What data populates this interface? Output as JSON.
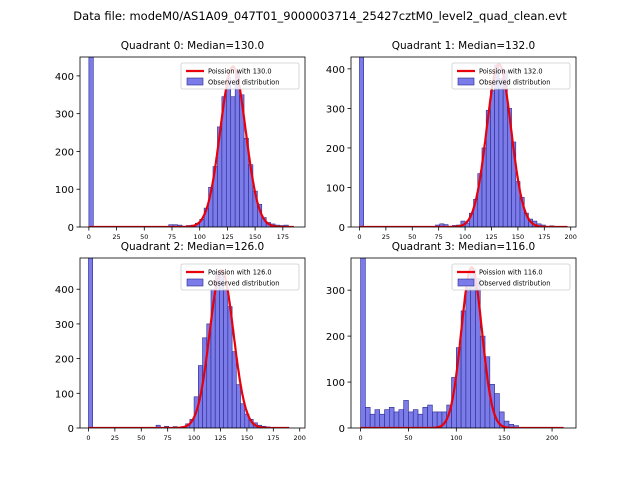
{
  "figure_title": "Data file: modeM0/AS1A09_047T01_9000003714_25427cztM0_level2_quad_clean.evt",
  "chart_data": [
    {
      "type": "bar",
      "title": "Quadrant 0: Median=130.0",
      "xlabel": "",
      "ylabel": "",
      "xlim": [
        -8,
        195
      ],
      "ylim": [
        0,
        450
      ],
      "xticks": [
        0,
        25,
        50,
        75,
        100,
        125,
        150,
        175
      ],
      "yticks": [
        0,
        100,
        200,
        300,
        400
      ],
      "bin_width": 4,
      "bins": [
        {
          "x": 0,
          "count": 450
        },
        {
          "x": 72,
          "count": 6
        },
        {
          "x": 76,
          "count": 6
        },
        {
          "x": 80,
          "count": 5
        },
        {
          "x": 88,
          "count": 4
        },
        {
          "x": 92,
          "count": 5
        },
        {
          "x": 96,
          "count": 10
        },
        {
          "x": 100,
          "count": 20
        },
        {
          "x": 104,
          "count": 50
        },
        {
          "x": 108,
          "count": 105
        },
        {
          "x": 112,
          "count": 160
        },
        {
          "x": 116,
          "count": 265
        },
        {
          "x": 120,
          "count": 345
        },
        {
          "x": 124,
          "count": 395
        },
        {
          "x": 128,
          "count": 345
        },
        {
          "x": 132,
          "count": 410
        },
        {
          "x": 136,
          "count": 350
        },
        {
          "x": 140,
          "count": 235
        },
        {
          "x": 144,
          "count": 165
        },
        {
          "x": 148,
          "count": 95
        },
        {
          "x": 152,
          "count": 60
        },
        {
          "x": 156,
          "count": 25
        },
        {
          "x": 160,
          "count": 12
        },
        {
          "x": 164,
          "count": 8
        },
        {
          "x": 168,
          "count": 5
        },
        {
          "x": 172,
          "count": 4
        },
        {
          "x": 176,
          "count": 5
        }
      ],
      "poisson": {
        "label": "Poission with 130.0",
        "mean": 130.0,
        "peak": 425,
        "x_range": [
          0,
          185
        ]
      },
      "legend": {
        "line_label": "Poission with 130.0",
        "bar_label": "Observed distribution",
        "position": "top-right"
      }
    },
    {
      "type": "bar",
      "title": "Quadrant 1: Median=132.0",
      "xlabel": "",
      "ylabel": "",
      "xlim": [
        -8,
        205
      ],
      "ylim": [
        0,
        430
      ],
      "xticks": [
        0,
        25,
        50,
        75,
        100,
        125,
        150,
        175,
        200
      ],
      "yticks": [
        0,
        100,
        200,
        300,
        400
      ],
      "bin_width": 4,
      "bins": [
        {
          "x": 0,
          "count": 430
        },
        {
          "x": 72,
          "count": 5
        },
        {
          "x": 76,
          "count": 8
        },
        {
          "x": 80,
          "count": 6
        },
        {
          "x": 88,
          "count": 4
        },
        {
          "x": 92,
          "count": 5
        },
        {
          "x": 96,
          "count": 15
        },
        {
          "x": 100,
          "count": 10
        },
        {
          "x": 104,
          "count": 35
        },
        {
          "x": 108,
          "count": 70
        },
        {
          "x": 112,
          "count": 135
        },
        {
          "x": 116,
          "count": 200
        },
        {
          "x": 120,
          "count": 295
        },
        {
          "x": 124,
          "count": 345
        },
        {
          "x": 128,
          "count": 410
        },
        {
          "x": 132,
          "count": 375
        },
        {
          "x": 136,
          "count": 395
        },
        {
          "x": 140,
          "count": 300
        },
        {
          "x": 144,
          "count": 215
        },
        {
          "x": 148,
          "count": 115
        },
        {
          "x": 152,
          "count": 75
        },
        {
          "x": 156,
          "count": 35
        },
        {
          "x": 160,
          "count": 20
        },
        {
          "x": 164,
          "count": 15
        },
        {
          "x": 168,
          "count": 8
        },
        {
          "x": 172,
          "count": 5
        },
        {
          "x": 180,
          "count": 3
        }
      ],
      "poisson": {
        "label": "Poission with 132.0",
        "mean": 132.0,
        "peak": 412,
        "x_range": [
          0,
          197
        ]
      },
      "legend": {
        "line_label": "Poission with 132.0",
        "bar_label": "Observed distribution",
        "position": "top-right"
      }
    },
    {
      "type": "bar",
      "title": "Quadrant 2: Median=126.0",
      "xlabel": "",
      "ylabel": "",
      "xlim": [
        -8,
        205
      ],
      "ylim": [
        0,
        490
      ],
      "xticks": [
        0,
        25,
        50,
        75,
        100,
        125,
        150,
        175,
        200
      ],
      "yticks": [
        0,
        100,
        200,
        300,
        400
      ],
      "bin_width": 4,
      "bins": [
        {
          "x": 0,
          "count": 490
        },
        {
          "x": 64,
          "count": 8
        },
        {
          "x": 72,
          "count": 5
        },
        {
          "x": 80,
          "count": 4
        },
        {
          "x": 88,
          "count": 4
        },
        {
          "x": 92,
          "count": 12
        },
        {
          "x": 96,
          "count": 25
        },
        {
          "x": 100,
          "count": 90
        },
        {
          "x": 104,
          "count": 180
        },
        {
          "x": 108,
          "count": 260
        },
        {
          "x": 112,
          "count": 300
        },
        {
          "x": 116,
          "count": 400
        },
        {
          "x": 120,
          "count": 450
        },
        {
          "x": 124,
          "count": 455
        },
        {
          "x": 128,
          "count": 400
        },
        {
          "x": 132,
          "count": 350
        },
        {
          "x": 136,
          "count": 220
        },
        {
          "x": 140,
          "count": 125
        },
        {
          "x": 144,
          "count": 70
        },
        {
          "x": 148,
          "count": 40
        },
        {
          "x": 152,
          "count": 25
        },
        {
          "x": 156,
          "count": 15
        },
        {
          "x": 160,
          "count": 8
        },
        {
          "x": 164,
          "count": 5
        },
        {
          "x": 168,
          "count": 3
        }
      ],
      "poisson": {
        "label": "Poission with 126.0",
        "mean": 126.0,
        "peak": 455,
        "x_range": [
          0,
          190
        ]
      },
      "legend": {
        "line_label": "Poission with 126.0",
        "bar_label": "Observed distribution",
        "position": "top-right"
      }
    },
    {
      "type": "bar",
      "title": "Quadrant 3: Median=116.0",
      "xlabel": "",
      "ylabel": "",
      "xlim": [
        -10,
        225
      ],
      "ylim": [
        0,
        370
      ],
      "xticks": [
        0,
        50,
        100,
        150,
        200
      ],
      "yticks": [
        0,
        100,
        200,
        300
      ],
      "bin_width": 5,
      "bins": [
        {
          "x": 0,
          "count": 370
        },
        {
          "x": 5,
          "count": 45
        },
        {
          "x": 10,
          "count": 30
        },
        {
          "x": 15,
          "count": 40
        },
        {
          "x": 20,
          "count": 30
        },
        {
          "x": 25,
          "count": 40
        },
        {
          "x": 30,
          "count": 45
        },
        {
          "x": 35,
          "count": 35
        },
        {
          "x": 40,
          "count": 40
        },
        {
          "x": 45,
          "count": 60
        },
        {
          "x": 50,
          "count": 35
        },
        {
          "x": 55,
          "count": 40
        },
        {
          "x": 60,
          "count": 30
        },
        {
          "x": 65,
          "count": 45
        },
        {
          "x": 70,
          "count": 50
        },
        {
          "x": 75,
          "count": 35
        },
        {
          "x": 80,
          "count": 35
        },
        {
          "x": 85,
          "count": 35
        },
        {
          "x": 90,
          "count": 50
        },
        {
          "x": 95,
          "count": 110
        },
        {
          "x": 100,
          "count": 175
        },
        {
          "x": 105,
          "count": 255
        },
        {
          "x": 110,
          "count": 305
        },
        {
          "x": 115,
          "count": 345
        },
        {
          "x": 120,
          "count": 325
        },
        {
          "x": 125,
          "count": 200
        },
        {
          "x": 130,
          "count": 155
        },
        {
          "x": 135,
          "count": 95
        },
        {
          "x": 140,
          "count": 75
        },
        {
          "x": 145,
          "count": 35
        },
        {
          "x": 150,
          "count": 15
        },
        {
          "x": 155,
          "count": 8
        },
        {
          "x": 160,
          "count": 5
        }
      ],
      "poisson": {
        "label": "Poission with 116.0",
        "mean": 116.0,
        "peak": 350,
        "x_range": [
          0,
          212
        ]
      },
      "legend": {
        "line_label": "Poission with 116.0",
        "bar_label": "Observed distribution",
        "position": "top-right"
      }
    }
  ],
  "colors": {
    "bar_fill": "#7b7bea",
    "bar_edge": "#2a2a8c",
    "curve": "#e8000b"
  }
}
